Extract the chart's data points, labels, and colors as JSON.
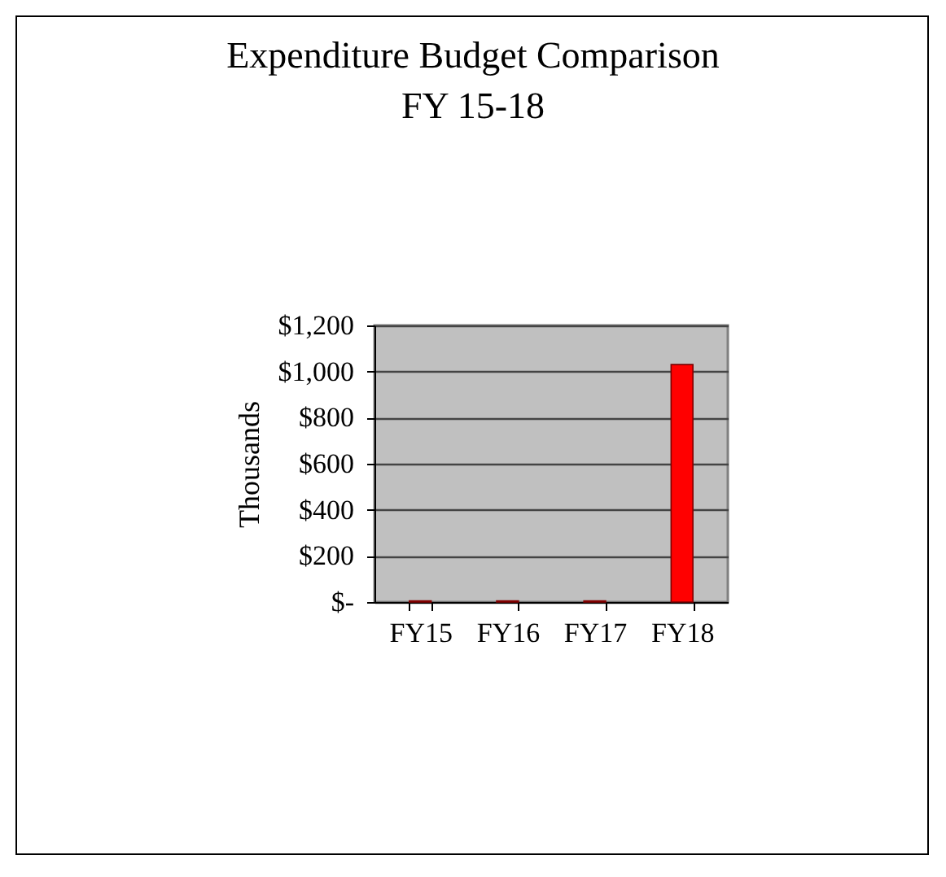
{
  "chart_data": {
    "type": "bar",
    "title": "Expenditure Budget Comparison\nFY 15-18",
    "ylabel": "Thousands",
    "categories": [
      "FY15",
      "FY16",
      "FY17",
      "FY18"
    ],
    "values": [
      5,
      5,
      5,
      1030
    ],
    "color": "#ff0000",
    "ylim": [
      0,
      1200
    ],
    "yticks": [
      {
        "value": 0,
        "label": "$-"
      },
      {
        "value": 200,
        "label": "$200"
      },
      {
        "value": 400,
        "label": "$400"
      },
      {
        "value": 600,
        "label": "$600"
      },
      {
        "value": 800,
        "label": "$800"
      },
      {
        "value": 1000,
        "label": "$1,000"
      },
      {
        "value": 1200,
        "label": "$1,200"
      }
    ],
    "grid": "y"
  }
}
